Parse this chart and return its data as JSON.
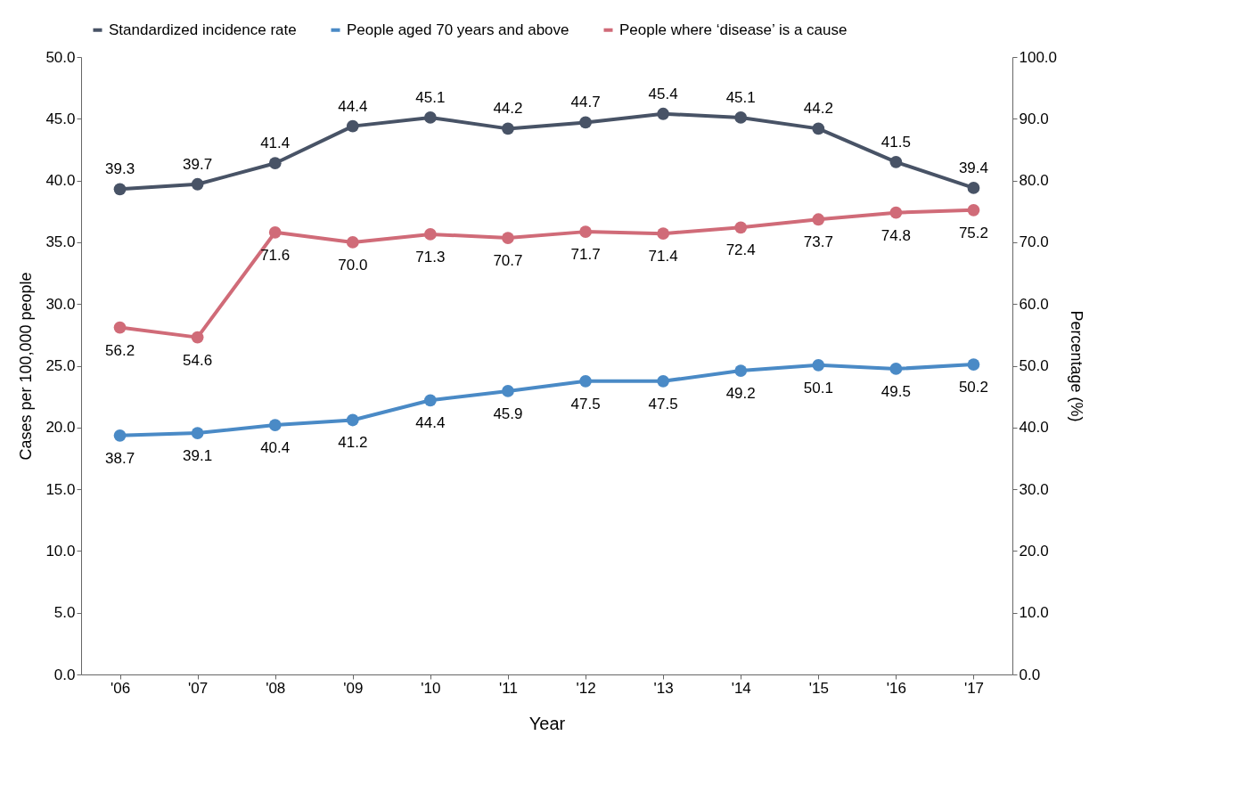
{
  "chart_data": {
    "type": "line",
    "categories": [
      "'06",
      "'07",
      "'08",
      "'09",
      "'10",
      "'11",
      "'12",
      "'13",
      "'14",
      "'15",
      "'16",
      "'17"
    ],
    "xlabel": "Year",
    "ylabel": "Cases per 100,000 people",
    "y2label": "Percentage (%)",
    "ylim": [
      0,
      50
    ],
    "yticks": [
      {
        "value": 0,
        "label": "0.0"
      },
      {
        "value": 5,
        "label": "5.0"
      },
      {
        "value": 10,
        "label": "10.0"
      },
      {
        "value": 15,
        "label": "15.0"
      },
      {
        "value": 20,
        "label": "20.0"
      },
      {
        "value": 25,
        "label": "25.0"
      },
      {
        "value": 30,
        "label": "30.0"
      },
      {
        "value": 35,
        "label": "35.0"
      },
      {
        "value": 40,
        "label": "40.0"
      },
      {
        "value": 45,
        "label": "45.0"
      },
      {
        "value": 50,
        "label": "50.0"
      }
    ],
    "y2lim": [
      0,
      100
    ],
    "y2ticks": [
      {
        "value": 0,
        "label": "0.0"
      },
      {
        "value": 10,
        "label": "10.0"
      },
      {
        "value": 20,
        "label": "20.0"
      },
      {
        "value": 30,
        "label": "30.0"
      },
      {
        "value": 40,
        "label": "40.0"
      },
      {
        "value": 50,
        "label": "50.0"
      },
      {
        "value": 60,
        "label": "60.0"
      },
      {
        "value": 70,
        "label": "70.0"
      },
      {
        "value": 80,
        "label": "80.0"
      },
      {
        "value": 90,
        "label": "90.0"
      },
      {
        "value": 100,
        "label": "100.0"
      }
    ],
    "series": [
      {
        "name": "Standardized incidence rate",
        "color": "#485366",
        "values": [
          39.3,
          39.7,
          41.4,
          44.4,
          45.1,
          44.2,
          44.7,
          45.4,
          45.1,
          44.2,
          41.5,
          39.4
        ],
        "value_labels": [
          "39.3",
          "39.7",
          "41.4",
          "44.4",
          "45.1",
          "44.2",
          "44.7",
          "45.4",
          "45.1",
          "44.2",
          "41.5",
          "39.4"
        ]
      },
      {
        "name": "People aged 70 years and above",
        "color": "#4a8ac6",
        "axis": "y2",
        "values": [
          38.7,
          39.1,
          40.4,
          41.2,
          44.4,
          45.9,
          47.5,
          47.5,
          49.2,
          50.1,
          49.5,
          50.2
        ],
        "value_labels": [
          "38.7",
          "39.1",
          "40.4",
          "41.2",
          "44.4",
          "45.9",
          "47.5",
          "47.5",
          "49.2",
          "50.1",
          "49.5",
          "50.2"
        ]
      },
      {
        "name": "People where ‘disease’ is a cause",
        "color": "#d06b78",
        "axis": "y2",
        "values": [
          56.2,
          54.6,
          71.6,
          70.0,
          71.3,
          70.7,
          71.7,
          71.4,
          72.4,
          73.7,
          74.8,
          75.2
        ],
        "value_labels": [
          "56.2",
          "54.6",
          "71.6",
          "70.0",
          "71.3",
          "70.7",
          "71.7",
          "71.4",
          "72.4",
          "73.7",
          "74.8",
          "75.2"
        ]
      }
    ],
    "marker": "circle",
    "line_style": "solid",
    "grid": false,
    "legend": "top"
  }
}
